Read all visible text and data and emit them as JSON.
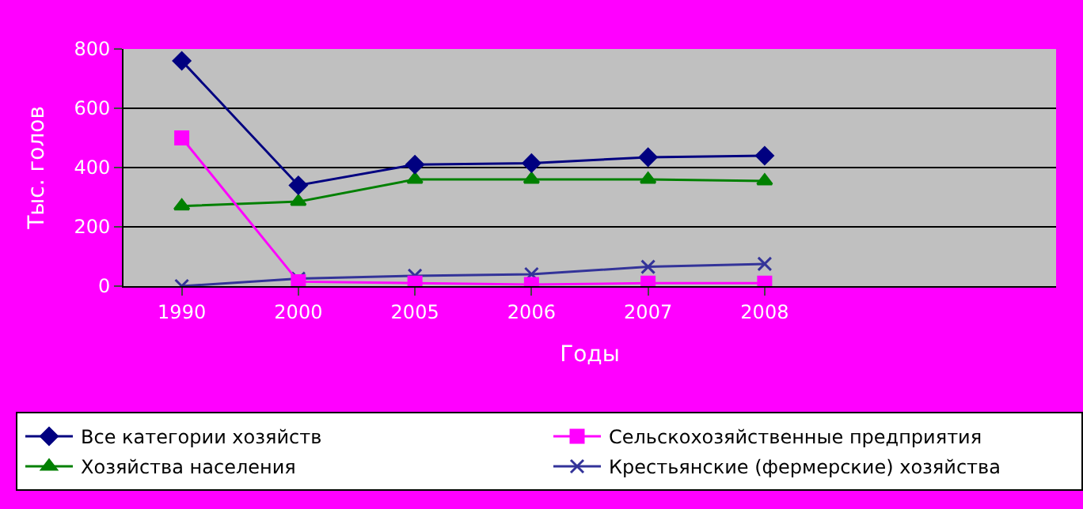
{
  "chart_data": {
    "type": "line",
    "xlabel": "Годы",
    "ylabel": "Тыс. голов",
    "categories": [
      "1990",
      "2000",
      "2005",
      "2006",
      "2007",
      "2008",
      null,
      null
    ],
    "ylim": [
      0,
      800
    ],
    "yticks": [
      0,
      200,
      400,
      600,
      800
    ],
    "grid": "y",
    "legend": "bottom",
    "series": [
      {
        "name": "Все категории хозяйств",
        "color": "#000080",
        "marker": "diamond",
        "values": [
          760,
          340,
          410,
          415,
          435,
          440,
          null,
          null
        ]
      },
      {
        "name": "Сельскохозяйственные предприятия",
        "color": "#ff00ff",
        "marker": "square",
        "values": [
          500,
          15,
          10,
          5,
          10,
          10,
          null,
          null
        ]
      },
      {
        "name": "Хозяйства населения",
        "color": "#008000",
        "marker": "triangle",
        "values": [
          270,
          285,
          360,
          360,
          360,
          355,
          null,
          null
        ]
      },
      {
        "name": "Крестьянские (фермерские) хозяйства",
        "color": "#333399",
        "marker": "cross",
        "values": [
          0,
          25,
          35,
          40,
          65,
          75,
          null,
          null
        ]
      }
    ]
  }
}
